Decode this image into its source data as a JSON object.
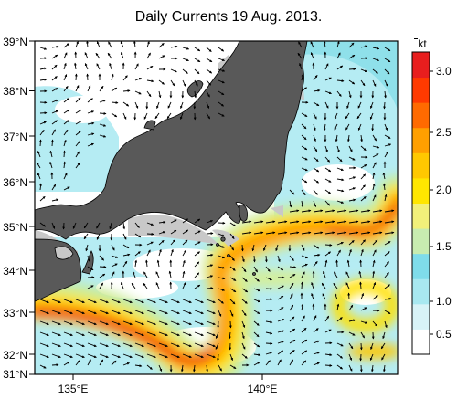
{
  "title": "Daily Currents 19 Aug. 2013.",
  "map": {
    "lat_labels": [
      "39°N",
      "38°N",
      "37°N",
      "36°N",
      "35°N",
      "34°N",
      "33°N",
      "32°N",
      "31°N"
    ],
    "lon_labels": [
      "135°E",
      "140°E"
    ],
    "colors": {
      "land": "#5a5a5a",
      "coast_gray": "#c8c8c8",
      "ocean_white": "#ffffff"
    }
  },
  "colorbar": {
    "unit": "kt",
    "ticks": [
      "3.0",
      "2.5",
      "2.0",
      "1.5",
      "1.0",
      "0.5"
    ],
    "colors": [
      "#ffffff",
      "#d8f3f7",
      "#a8e8f0",
      "#7fdcea",
      "#c8ecb0",
      "#f2f07a",
      "#ffe600",
      "#ffc800",
      "#ff9f00",
      "#ff6a00",
      "#ff3a00",
      "#e81e1e"
    ]
  }
}
